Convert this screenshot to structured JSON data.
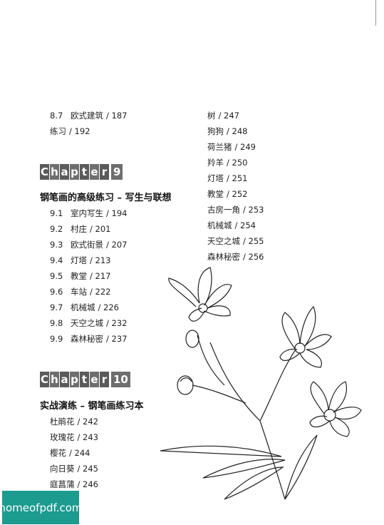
{
  "top_items": [
    {
      "num": "8.7",
      "title": "欧式建筑",
      "page": "/ 187"
    },
    {
      "num": "",
      "title": "练习",
      "page": "/ 192"
    }
  ],
  "chapter9": {
    "letters": [
      "C",
      "h",
      "a",
      "p",
      "t",
      "e",
      "r"
    ],
    "number": "9",
    "title": "钢笔画的高级练习 – 写生与联想",
    "items": [
      {
        "num": "9.1",
        "title": "室内写生",
        "page": "/ 194"
      },
      {
        "num": "9.2",
        "title": "村庄",
        "page": "/ 201"
      },
      {
        "num": "9.3",
        "title": "欧式街景",
        "page": "/ 207"
      },
      {
        "num": "9.4",
        "title": "灯塔",
        "page": "/ 213"
      },
      {
        "num": "9.5",
        "title": "教堂",
        "page": "/ 217"
      },
      {
        "num": "9.6",
        "title": "车站",
        "page": "/ 222"
      },
      {
        "num": "9.7",
        "title": "机械城",
        "page": "/ 226"
      },
      {
        "num": "9.8",
        "title": "天空之城",
        "page": "/ 232"
      },
      {
        "num": "9.9",
        "title": "森林秘密",
        "page": "/ 237"
      }
    ]
  },
  "chapter10": {
    "letters": [
      "C",
      "h",
      "a",
      "p",
      "t",
      "e",
      "r"
    ],
    "number": "10",
    "title": "实战演练 – 钢笔画练习本",
    "items": [
      {
        "title": "杜鹃花",
        "page": "/ 242"
      },
      {
        "title": "玫瑰花",
        "page": "/ 243"
      },
      {
        "title": "樱花",
        "page": "/ 244"
      },
      {
        "title": "向日葵",
        "page": "/ 245"
      },
      {
        "title": "庭菖蒲",
        "page": "/ 246"
      }
    ]
  },
  "right_items": [
    {
      "title": "树",
      "page": "/ 247"
    },
    {
      "title": "狗狗",
      "page": "/ 248"
    },
    {
      "title": "荷兰猪",
      "page": "/ 249"
    },
    {
      "title": "羚羊",
      "page": "/ 250"
    },
    {
      "title": "灯塔",
      "page": "/ 251"
    },
    {
      "title": "教堂",
      "page": "/ 252"
    },
    {
      "title": "古房一角",
      "page": "/ 253"
    },
    {
      "title": "机械城",
      "page": "/ 254"
    },
    {
      "title": "天空之城",
      "page": "/ 255"
    },
    {
      "title": "森林秘密",
      "page": "/ 256"
    }
  ],
  "watermark": "homeofpdf.com"
}
